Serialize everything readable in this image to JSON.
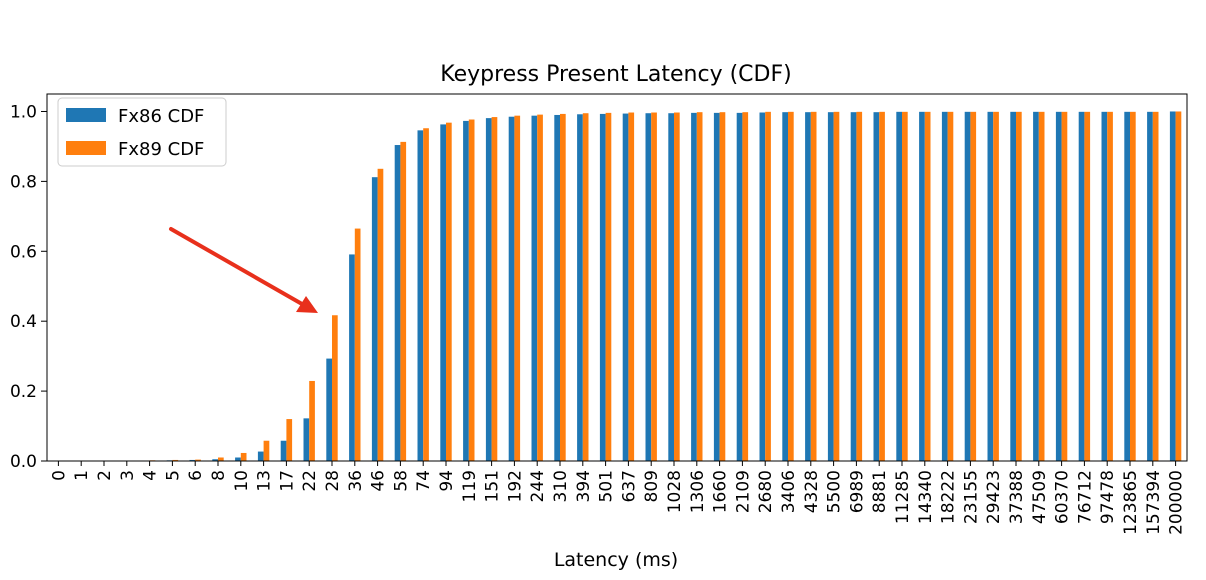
{
  "chart_data": {
    "type": "bar",
    "title": "Keypress Present Latency (CDF)",
    "xlabel": "Latency (ms)",
    "ylabel": "",
    "ylim": [
      0,
      1.05
    ],
    "yticks": [
      0.0,
      0.2,
      0.4,
      0.6,
      0.8,
      1.0
    ],
    "ytick_labels": [
      "0.0",
      "0.2",
      "0.4",
      "0.6",
      "0.8",
      "1.0"
    ],
    "legend_position": "top-left",
    "grid": false,
    "categories": [
      "0",
      "1",
      "2",
      "3",
      "4",
      "5",
      "6",
      "8",
      "10",
      "13",
      "17",
      "22",
      "28",
      "36",
      "46",
      "58",
      "74",
      "94",
      "119",
      "151",
      "192",
      "244",
      "310",
      "394",
      "501",
      "637",
      "809",
      "1028",
      "1306",
      "1660",
      "2109",
      "2680",
      "3406",
      "4328",
      "5500",
      "6989",
      "8881",
      "11285",
      "14340",
      "18222",
      "23155",
      "29423",
      "37388",
      "47509",
      "60370",
      "76712",
      "97478",
      "123865",
      "157394",
      "200000"
    ],
    "series": [
      {
        "name": "Fx86 CDF",
        "color": "#1f77b4",
        "values": [
          0.0,
          0.0,
          0.0,
          0.0,
          0.001,
          0.002,
          0.003,
          0.005,
          0.01,
          0.027,
          0.058,
          0.122,
          0.293,
          0.591,
          0.812,
          0.904,
          0.946,
          0.963,
          0.973,
          0.981,
          0.985,
          0.988,
          0.99,
          0.992,
          0.993,
          0.994,
          0.995,
          0.995,
          0.996,
          0.996,
          0.996,
          0.997,
          0.998,
          0.998,
          0.998,
          0.998,
          0.998,
          0.999,
          0.999,
          0.999,
          0.999,
          0.999,
          0.999,
          0.999,
          0.999,
          0.999,
          0.999,
          0.999,
          0.999,
          1.0
        ]
      },
      {
        "name": "Fx89 CDF",
        "color": "#ff7f0e",
        "values": [
          0.0,
          0.0,
          0.0,
          0.0,
          0.002,
          0.003,
          0.004,
          0.01,
          0.023,
          0.058,
          0.12,
          0.229,
          0.417,
          0.665,
          0.836,
          0.913,
          0.952,
          0.968,
          0.977,
          0.984,
          0.988,
          0.991,
          0.993,
          0.995,
          0.996,
          0.997,
          0.997,
          0.997,
          0.998,
          0.998,
          0.998,
          0.999,
          0.999,
          0.999,
          0.999,
          0.999,
          0.999,
          0.999,
          0.999,
          0.999,
          0.999,
          0.999,
          0.999,
          0.999,
          0.999,
          0.999,
          0.999,
          0.999,
          0.999,
          1.0
        ]
      }
    ],
    "annotations": [
      {
        "type": "arrow",
        "color": "#e8301c",
        "points_to": "Fx89 CDF at 28"
      }
    ]
  }
}
